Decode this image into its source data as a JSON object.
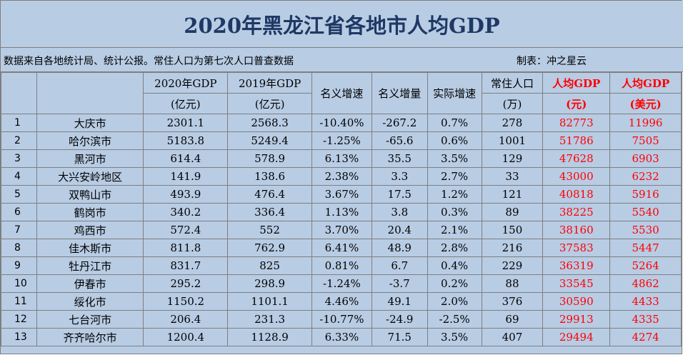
{
  "title": "2020年黑龙江省各地市人均GDP",
  "source_note": "数据来自各地统计局、统计公报。常住人口为第七次人口普查数据",
  "maker": "制表：冲之星云",
  "headers": {
    "gdp2020_line1": "2020年GDP",
    "gdp2020_line2": "(亿元)",
    "gdp2019_line1": "2019年GDP",
    "gdp2019_line2": "(亿元)",
    "nominal_rate": "名义增速",
    "nominal_increase": "名义增量",
    "real_rate": "实际增速",
    "population_line1": "常住人口",
    "population_line2": "(万)",
    "per_capita_cny_line1": "人均GDP",
    "per_capita_cny_line2": "(元)",
    "per_capita_usd_line1": "人均GDP",
    "per_capita_usd_line2": "(美元)"
  },
  "rows": [
    {
      "rank": "1",
      "city": "大庆市",
      "gdp2020": "2301.1",
      "gdp2019": "2568.3",
      "nominal_rate": "-10.40%",
      "nominal_increase": "-267.2",
      "real_rate": "0.7%",
      "population": "278",
      "per_capita_cny": "82773",
      "per_capita_usd": "11996"
    },
    {
      "rank": "2",
      "city": "哈尔滨市",
      "gdp2020": "5183.8",
      "gdp2019": "5249.4",
      "nominal_rate": "-1.25%",
      "nominal_increase": "-65.6",
      "real_rate": "0.6%",
      "population": "1001",
      "per_capita_cny": "51786",
      "per_capita_usd": "7505"
    },
    {
      "rank": "3",
      "city": "黑河市",
      "gdp2020": "614.4",
      "gdp2019": "578.9",
      "nominal_rate": "6.13%",
      "nominal_increase": "35.5",
      "real_rate": "3.5%",
      "population": "129",
      "per_capita_cny": "47628",
      "per_capita_usd": "6903"
    },
    {
      "rank": "4",
      "city": "大兴安岭地区",
      "gdp2020": "141.9",
      "gdp2019": "138.6",
      "nominal_rate": "2.38%",
      "nominal_increase": "3.3",
      "real_rate": "2.7%",
      "population": "33",
      "per_capita_cny": "43000",
      "per_capita_usd": "6232"
    },
    {
      "rank": "5",
      "city": "双鸭山市",
      "gdp2020": "493.9",
      "gdp2019": "476.4",
      "nominal_rate": "3.67%",
      "nominal_increase": "17.5",
      "real_rate": "1.2%",
      "population": "121",
      "per_capita_cny": "40818",
      "per_capita_usd": "5916"
    },
    {
      "rank": "6",
      "city": "鹤岗市",
      "gdp2020": "340.2",
      "gdp2019": "336.4",
      "nominal_rate": "1.13%",
      "nominal_increase": "3.8",
      "real_rate": "0.3%",
      "population": "89",
      "per_capita_cny": "38225",
      "per_capita_usd": "5540"
    },
    {
      "rank": "7",
      "city": "鸡西市",
      "gdp2020": "572.4",
      "gdp2019": "552",
      "nominal_rate": "3.70%",
      "nominal_increase": "20.4",
      "real_rate": "2.1%",
      "population": "150",
      "per_capita_cny": "38160",
      "per_capita_usd": "5530"
    },
    {
      "rank": "8",
      "city": "佳木斯市",
      "gdp2020": "811.8",
      "gdp2019": "762.9",
      "nominal_rate": "6.41%",
      "nominal_increase": "48.9",
      "real_rate": "2.8%",
      "population": "216",
      "per_capita_cny": "37583",
      "per_capita_usd": "5447"
    },
    {
      "rank": "9",
      "city": "牡丹江市",
      "gdp2020": "831.7",
      "gdp2019": "825",
      "nominal_rate": "0.81%",
      "nominal_increase": "6.7",
      "real_rate": "0.4%",
      "population": "229",
      "per_capita_cny": "36319",
      "per_capita_usd": "5264"
    },
    {
      "rank": "10",
      "city": "伊春市",
      "gdp2020": "295.2",
      "gdp2019": "298.9",
      "nominal_rate": "-1.24%",
      "nominal_increase": "-3.7",
      "real_rate": "0.2%",
      "population": "88",
      "per_capita_cny": "33545",
      "per_capita_usd": "4862"
    },
    {
      "rank": "11",
      "city": "绥化市",
      "gdp2020": "1150.2",
      "gdp2019": "1101.1",
      "nominal_rate": "4.46%",
      "nominal_increase": "49.1",
      "real_rate": "2.0%",
      "population": "376",
      "per_capita_cny": "30590",
      "per_capita_usd": "4433"
    },
    {
      "rank": "12",
      "city": "七台河市",
      "gdp2020": "206.4",
      "gdp2019": "231.3",
      "nominal_rate": "-10.77%",
      "nominal_increase": "-24.9",
      "real_rate": "-2.5%",
      "population": "69",
      "per_capita_cny": "29913",
      "per_capita_usd": "4335"
    },
    {
      "rank": "13",
      "city": "齐齐哈尔市",
      "gdp2020": "1200.4",
      "gdp2019": "1128.9",
      "nominal_rate": "6.33%",
      "nominal_increase": "71.5",
      "real_rate": "3.5%",
      "population": "407",
      "per_capita_cny": "29494",
      "per_capita_usd": "4274"
    }
  ],
  "colors": {
    "background": "#b8cce4",
    "title": "#1f3864",
    "highlight": "#ff0000",
    "grid": "#7f7f7f"
  }
}
